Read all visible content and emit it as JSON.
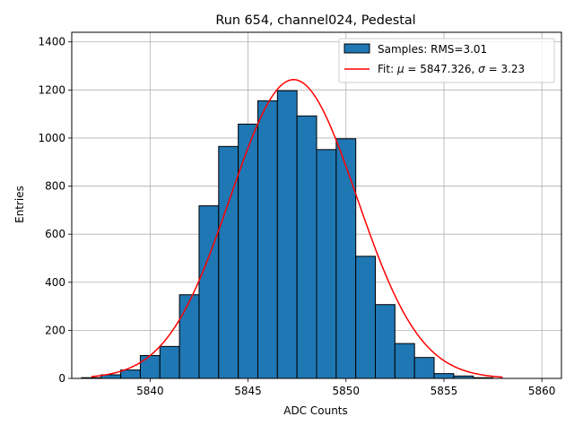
{
  "chart_data": {
    "type": "bar",
    "title": "Run 654, channel024, Pedestal",
    "xlabel": "ADC Counts",
    "ylabel": "Entries",
    "xlim": [
      5836,
      5861
    ],
    "ylim": [
      0,
      1440
    ],
    "xticks": [
      5840,
      5845,
      5850,
      5855,
      5860
    ],
    "yticks": [
      0,
      200,
      400,
      600,
      800,
      1000,
      1200,
      1400
    ],
    "grid": true,
    "legend_position": "top-right",
    "bin_width": 1,
    "bins": [
      {
        "x": 5837,
        "count": 3
      },
      {
        "x": 5838,
        "count": 15
      },
      {
        "x": 5839,
        "count": 35
      },
      {
        "x": 5840,
        "count": 95
      },
      {
        "x": 5841,
        "count": 133
      },
      {
        "x": 5842,
        "count": 348
      },
      {
        "x": 5843,
        "count": 718
      },
      {
        "x": 5844,
        "count": 965
      },
      {
        "x": 5845,
        "count": 1058
      },
      {
        "x": 5846,
        "count": 1155
      },
      {
        "x": 5847,
        "count": 1197
      },
      {
        "x": 5848,
        "count": 1092
      },
      {
        "x": 5849,
        "count": 952
      },
      {
        "x": 5850,
        "count": 997
      },
      {
        "x": 5851,
        "count": 508
      },
      {
        "x": 5852,
        "count": 307
      },
      {
        "x": 5853,
        "count": 145
      },
      {
        "x": 5854,
        "count": 87
      },
      {
        "x": 5855,
        "count": 20
      },
      {
        "x": 5856,
        "count": 10
      },
      {
        "x": 5857,
        "count": 3
      }
    ],
    "series": [
      {
        "name": "Samples: RMS=3.01",
        "kind": "histogram",
        "color": "#1f77b4",
        "edge_color": "#000000"
      },
      {
        "name": "Fit: μ = 5847.326, σ = 3.23",
        "kind": "gaussian-fit",
        "color": "#ff0000",
        "mu": 5847.326,
        "sigma": 3.23,
        "amplitude": 1243,
        "x_range": [
          5837,
          5858
        ]
      }
    ],
    "legend": {
      "samples_label": "Samples: RMS=3.01",
      "fit_prefix": "Fit: ",
      "fit_mu_symbol": "μ",
      "fit_mu_text": " = 5847.326, ",
      "fit_sigma_symbol": "σ",
      "fit_sigma_text": " = 3.23"
    }
  }
}
